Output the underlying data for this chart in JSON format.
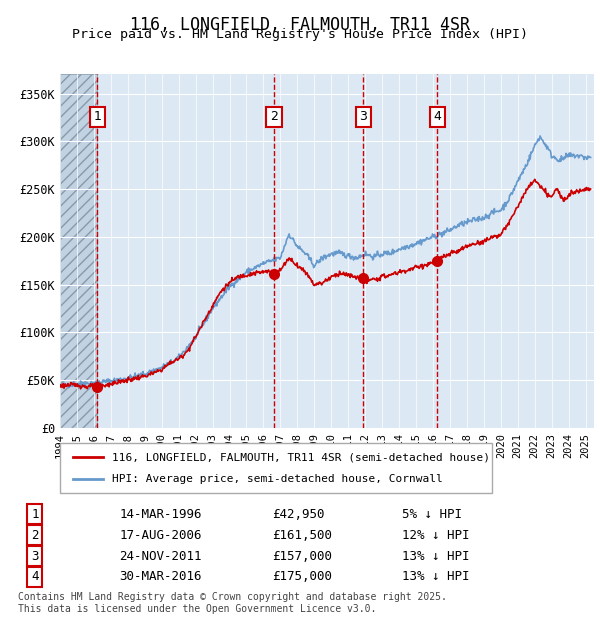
{
  "title": "116, LONGFIELD, FALMOUTH, TR11 4SR",
  "subtitle": "Price paid vs. HM Land Registry's House Price Index (HPI)",
  "legend_line1": "116, LONGFIELD, FALMOUTH, TR11 4SR (semi-detached house)",
  "legend_line2": "HPI: Average price, semi-detached house, Cornwall",
  "footer": "Contains HM Land Registry data © Crown copyright and database right 2025.\nThis data is licensed under the Open Government Licence v3.0.",
  "sales": [
    {
      "num": 1,
      "date": "14-MAR-1996",
      "price": 42950,
      "pct": "5%",
      "year": 1996.2
    },
    {
      "num": 2,
      "date": "17-AUG-2006",
      "price": 161500,
      "pct": "12%",
      "year": 2006.63
    },
    {
      "num": 3,
      "date": "24-NOV-2011",
      "price": 157000,
      "pct": "13%",
      "year": 2011.9
    },
    {
      "num": 4,
      "date": "30-MAR-2016",
      "price": 175000,
      "pct": "13%",
      "year": 2016.25
    }
  ],
  "ylim": [
    0,
    370000
  ],
  "yticks": [
    0,
    50000,
    100000,
    150000,
    200000,
    250000,
    300000,
    350000
  ],
  "ytick_labels": [
    "£0",
    "£50K",
    "£100K",
    "£150K",
    "£200K",
    "£250K",
    "£300K",
    "£350K"
  ],
  "xlim_start": 1994.0,
  "xlim_end": 2025.5,
  "hpi_color": "#6699cc",
  "price_color": "#cc0000",
  "sale_marker_color": "#cc0000",
  "dashed_line_color": "#cc0000",
  "background_color": "#dce9f5",
  "hatch_color": "#b0c4d8",
  "grid_color": "#ffffff",
  "title_fontsize": 13,
  "subtitle_fontsize": 11
}
